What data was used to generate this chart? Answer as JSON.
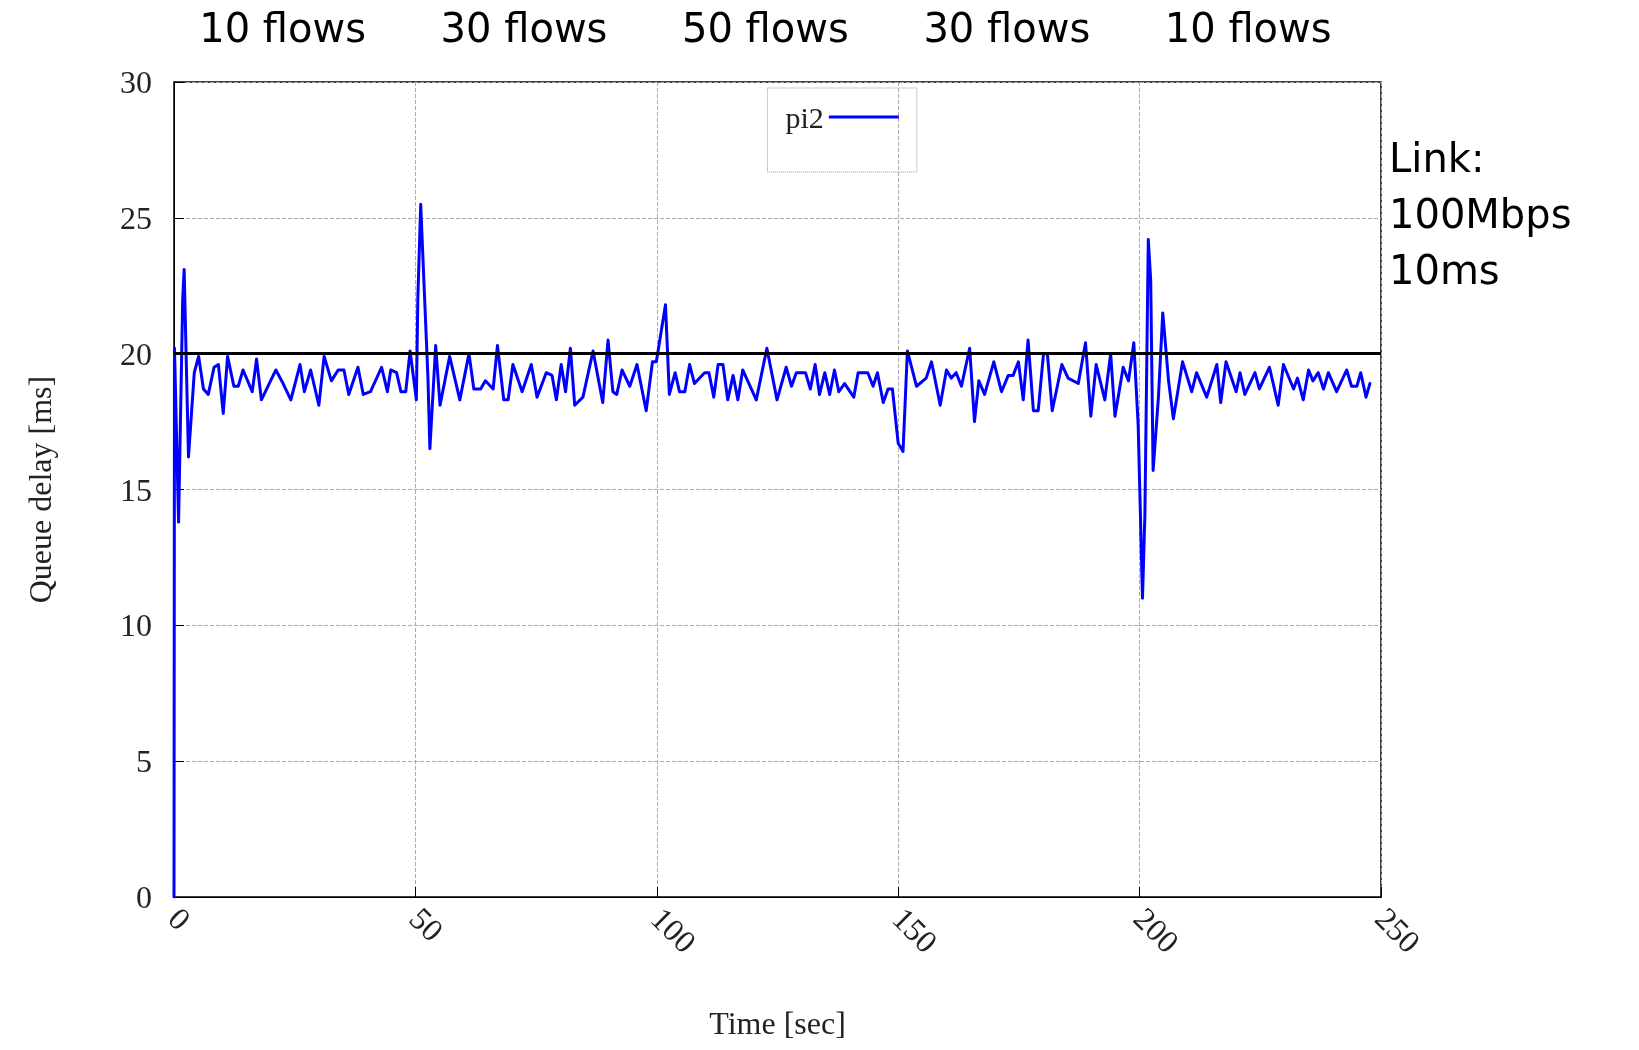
{
  "chart_data": {
    "type": "line",
    "xlabel": "Time [sec]",
    "ylabel": "Queue delay [ms]",
    "xlim": [
      0,
      250
    ],
    "ylim": [
      0,
      30
    ],
    "xticks": [
      0,
      50,
      100,
      150,
      200,
      250
    ],
    "yticks": [
      0,
      5,
      10,
      15,
      20,
      25,
      30
    ],
    "grid": true,
    "legend": "top",
    "marker": "none",
    "line_style": "solid",
    "ref_lines": [
      {
        "axis": "y",
        "value": 20,
        "color": "#000000",
        "line_style": "solid"
      }
    ],
    "annotations": [
      "10 flows",
      "30 flows",
      "50 flows",
      "30 flows",
      "10 flows",
      "Link:\n100Mbps\n10ms"
    ],
    "series": [
      {
        "name": "pi2",
        "color": "#0000ff",
        "x": [
          0,
          0.1,
          0.95,
          1.8,
          2.1,
          3.0,
          4.2,
          5.1,
          6.1,
          7.1,
          8.3,
          9.2,
          10.2,
          11.1,
          12.4,
          13.3,
          14.3,
          16.2,
          17.1,
          18.1,
          21.1,
          22.6,
          24.2,
          26.1,
          27.0,
          28.3,
          30.0,
          31.1,
          32.6,
          34.0,
          35.2,
          36.2,
          38.1,
          39.2,
          40.7,
          43.0,
          44.2,
          44.9,
          46.1,
          47.0,
          48.0,
          48.9,
          50.2,
          50.5,
          51.1,
          51.8,
          52.6,
          53.0,
          54.2,
          55.1,
          57.1,
          59.2,
          61.1,
          62.1,
          63.5,
          64.5,
          66.1,
          67.0,
          68.3,
          69.2,
          70.2,
          72.1,
          74.0,
          75.2,
          77.1,
          78.3,
          79.2,
          80.2,
          81.1,
          82.1,
          83.0,
          84.7,
          86.8,
          88.8,
          89.9,
          90.9,
          91.7,
          92.8,
          94.4,
          95.9,
          97.8,
          99.1,
          99.9,
          101.8,
          102.6,
          103.8,
          104.7,
          105.8,
          106.8,
          107.8,
          109.9,
          110.8,
          111.8,
          112.7,
          113.7,
          114.7,
          115.8,
          116.8,
          117.8,
          120.6,
          122.8,
          124.9,
          126.8,
          127.9,
          128.9,
          130.8,
          131.8,
          132.8,
          133.7,
          134.8,
          135.8,
          136.8,
          137.7,
          138.9,
          140.8,
          141.7,
          143.7,
          144.8,
          145.7,
          146.9,
          147.9,
          148.8,
          150.0,
          151.0,
          151.9,
          153.8,
          155.8,
          156.9,
          158.7,
          160.0,
          161.0,
          162.0,
          163.1,
          164.8,
          165.8,
          166.7,
          167.9,
          169.8,
          171.4,
          172.8,
          173.8,
          174.9,
          175.9,
          176.9,
          178.0,
          179.0,
          180.1,
          180.9,
          181.9,
          183.9,
          185.2,
          187.3,
          188.8,
          189.9,
          191.0,
          192.8,
          194.0,
          194.9,
          196.6,
          197.7,
          198.8,
          199.7,
          200.6,
          201.1,
          201.8,
          202.3,
          202.8,
          203.9,
          204.8,
          206.0,
          207.0,
          208.9,
          210.8,
          211.8,
          213.9,
          216.0,
          216.8,
          217.9,
          220.0,
          220.8,
          221.8,
          223.9,
          224.8,
          226.9,
          228.7,
          229.8,
          231.9,
          232.7,
          233.9,
          235.0,
          235.9,
          237.0,
          238.1,
          239.1,
          240.8,
          242.9,
          243.9,
          245.0,
          245.8,
          246.9,
          247.7
        ],
        "values": [
          0,
          20.2,
          13.8,
          22,
          23.1,
          16.2,
          19.3,
          19.9,
          18.7,
          18.5,
          19.5,
          19.6,
          17.8,
          19.9,
          18.8,
          18.8,
          19.4,
          18.6,
          19.8,
          18.3,
          19.4,
          18.9,
          18.3,
          19.6,
          18.6,
          19.4,
          18.1,
          19.9,
          19.0,
          19.4,
          19.4,
          18.5,
          19.5,
          18.5,
          18.6,
          19.5,
          18.6,
          19.4,
          19.3,
          18.6,
          18.6,
          20.1,
          18.3,
          22.0,
          25.5,
          22.5,
          19.1,
          16.5,
          20.3,
          18.1,
          19.9,
          18.3,
          20.0,
          18.7,
          18.7,
          19.0,
          18.7,
          20.3,
          18.3,
          18.3,
          19.6,
          18.6,
          19.6,
          18.4,
          19.3,
          19.2,
          18.3,
          19.6,
          18.6,
          20.2,
          18.1,
          18.4,
          20.1,
          18.2,
          20.5,
          18.6,
          18.5,
          19.4,
          18.8,
          19.6,
          17.9,
          19.7,
          19.7,
          21.8,
          18.5,
          19.3,
          18.6,
          18.6,
          19.6,
          18.9,
          19.3,
          19.3,
          18.4,
          19.6,
          19.6,
          18.3,
          19.2,
          18.3,
          19.4,
          18.3,
          20.2,
          18.3,
          19.5,
          18.8,
          19.3,
          19.3,
          18.7,
          19.6,
          18.5,
          19.3,
          18.5,
          19.4,
          18.6,
          18.9,
          18.4,
          19.3,
          19.3,
          18.8,
          19.3,
          18.2,
          18.7,
          18.7,
          16.7,
          16.4,
          20.1,
          18.8,
          19.1,
          19.7,
          18.1,
          19.4,
          19.1,
          19.3,
          18.8,
          20.2,
          17.5,
          19.0,
          18.5,
          19.7,
          18.6,
          19.2,
          19.2,
          19.7,
          18.3,
          20.5,
          17.9,
          17.9,
          20.0,
          20.0,
          17.9,
          19.6,
          19.1,
          18.9,
          20.4,
          17.7,
          19.6,
          18.3,
          20.0,
          17.7,
          19.5,
          19.0,
          20.4,
          17.4,
          11.0,
          14.1,
          24.2,
          22.7,
          15.7,
          18.4,
          21.5,
          19.0,
          17.6,
          19.7,
          18.6,
          19.3,
          18.4,
          19.6,
          18.2,
          19.7,
          18.6,
          19.3,
          18.5,
          19.3,
          18.7,
          19.5,
          18.1,
          19.6,
          18.7,
          19.1,
          18.3,
          19.4,
          19.0,
          19.3,
          18.7,
          19.3,
          18.6,
          19.4,
          18.8,
          18.8,
          19.3,
          18.4,
          18.9
        ]
      }
    ]
  }
}
